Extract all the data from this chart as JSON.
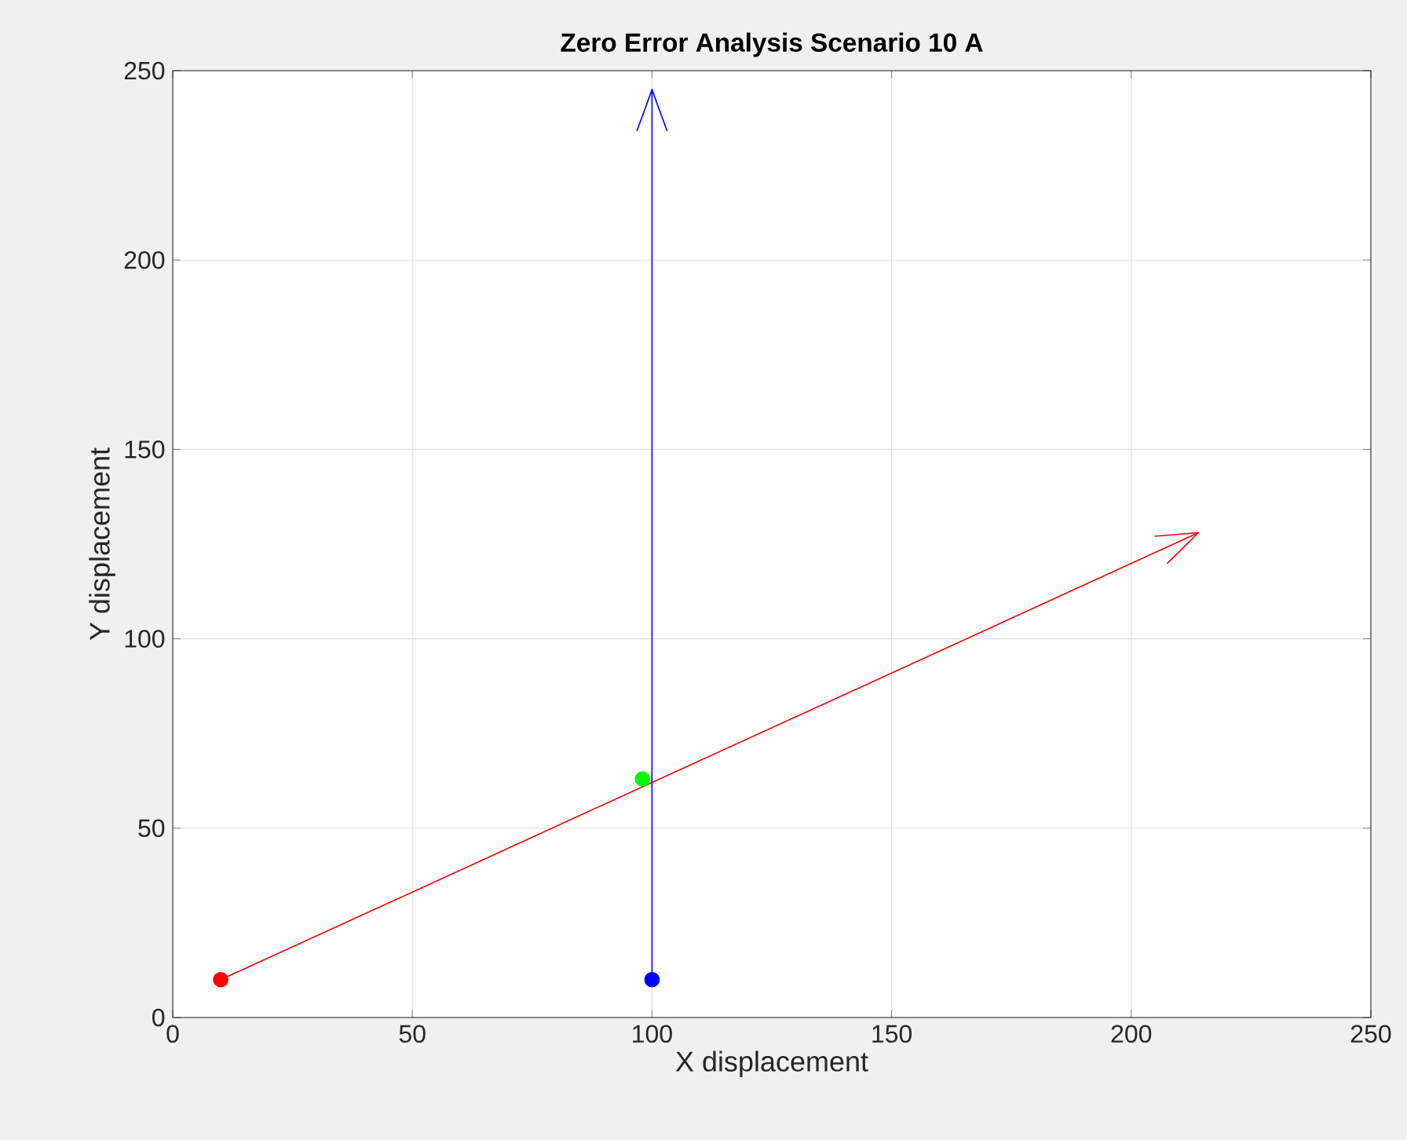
{
  "chart_data": {
    "type": "line",
    "title": "Zero Error Analysis Scenario 10 A",
    "xlabel": "X displacement",
    "ylabel": "Y displacement",
    "xlim": [
      0,
      250
    ],
    "ylim": [
      0,
      250
    ],
    "xticks": [
      0,
      50,
      100,
      150,
      200,
      250
    ],
    "yticks": [
      0,
      50,
      100,
      150,
      200,
      250
    ],
    "grid": true,
    "series": [
      {
        "color": "#ff0000",
        "x": [
          10,
          214
        ],
        "values": [
          10,
          128
        ],
        "marker": "none"
      },
      {
        "color": "#0000ff",
        "x": [
          100,
          100
        ],
        "values": [
          10,
          245
        ],
        "marker": "none"
      },
      {
        "type": "scatter",
        "color": "#ff0000",
        "x": [
          10
        ],
        "values": [
          10
        ],
        "marker": "circle"
      },
      {
        "type": "scatter",
        "color": "#0000ff",
        "x": [
          100
        ],
        "values": [
          10
        ],
        "marker": "circle"
      },
      {
        "type": "scatter",
        "color": "#00ff00",
        "x": [
          98
        ],
        "values": [
          63
        ],
        "marker": "circle"
      }
    ]
  }
}
